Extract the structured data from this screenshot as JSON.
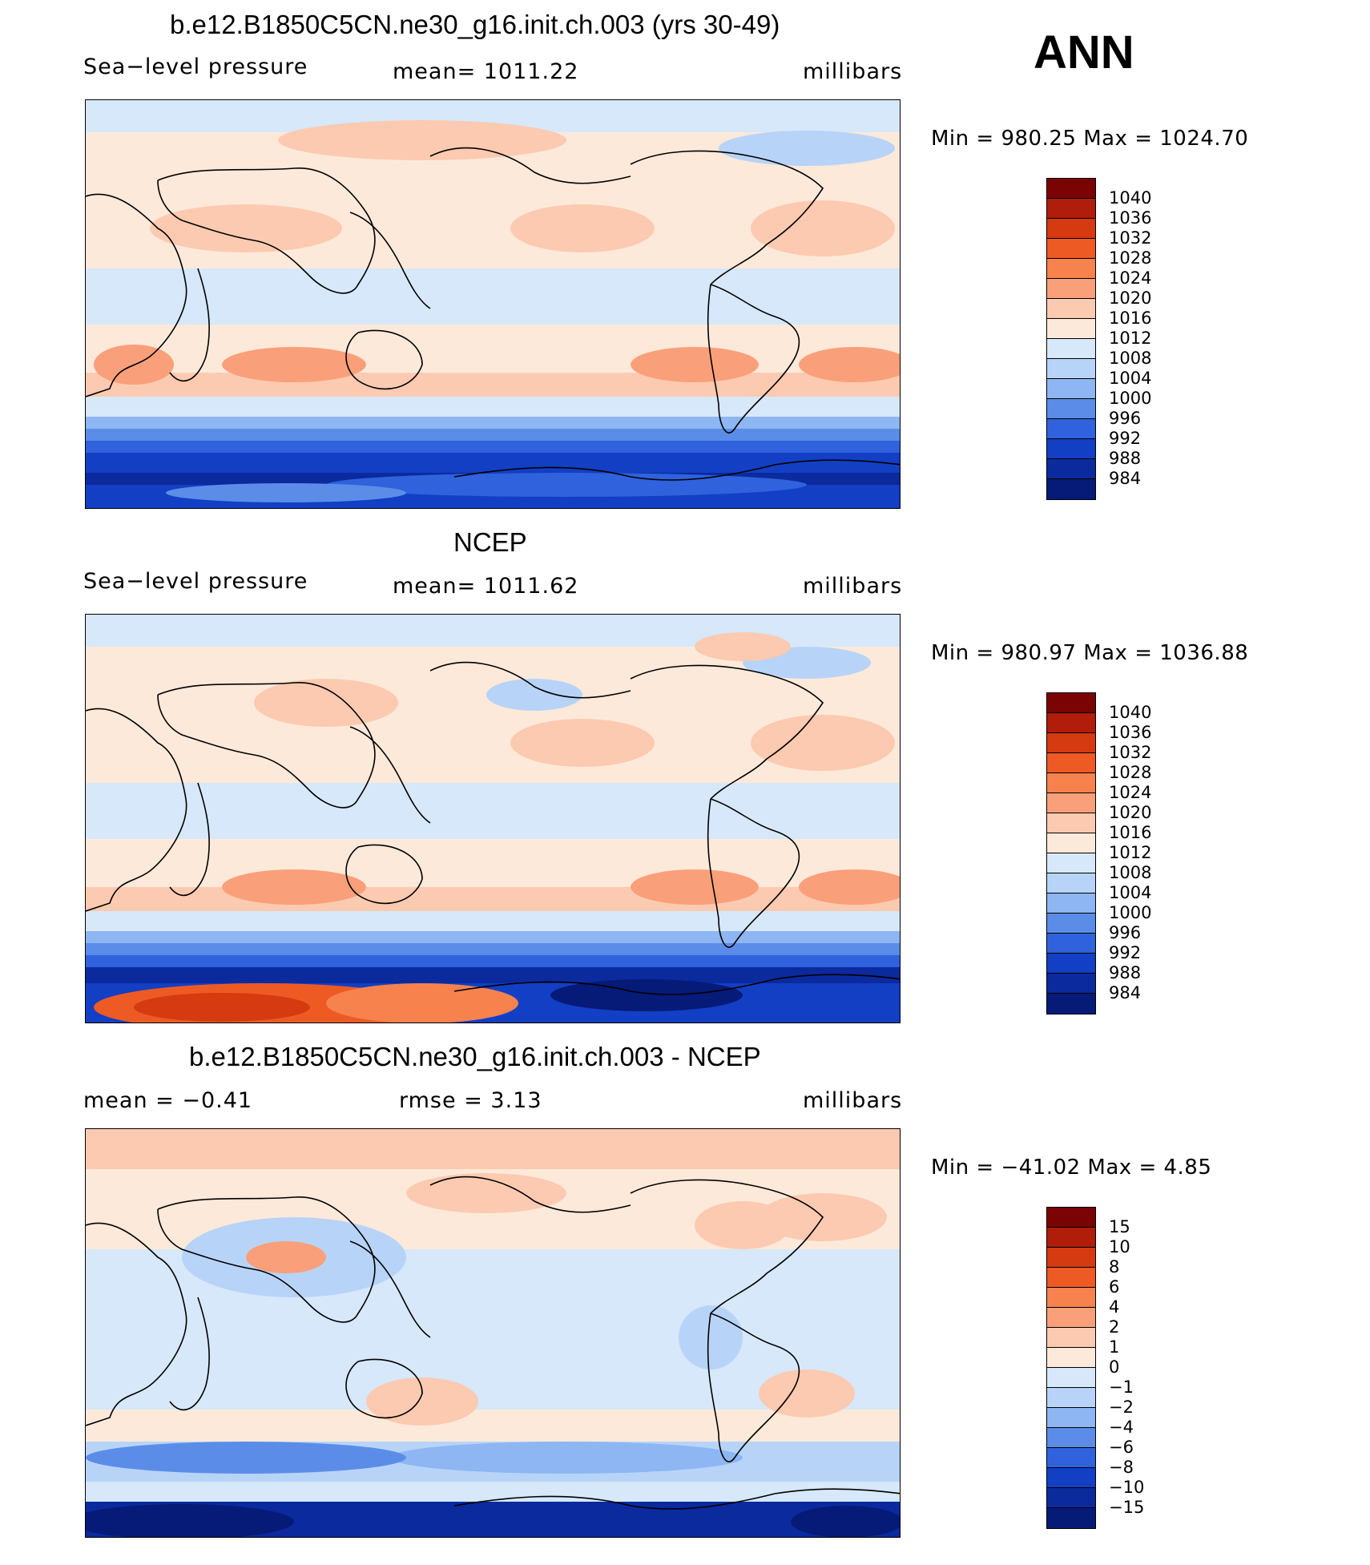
{
  "season": "ANN",
  "units": "millibars",
  "panels": [
    {
      "title": "b.e12.B1850C5CN.ne30_g16.init.ch.003 (yrs 30-49)",
      "left_label": "Sea−level pressure",
      "center_label": "mean=  1011.22",
      "right_label": "millibars",
      "minmax": "Min  =  980.25  Max  =  1024.70",
      "colorbar_levels": [
        "1040",
        "1036",
        "1032",
        "1028",
        "1024",
        "1020",
        "1016",
        "1012",
        "1008",
        "1004",
        "1000",
        "996",
        "992",
        "988",
        "984"
      ]
    },
    {
      "title": "NCEP",
      "left_label": "Sea−level pressure",
      "center_label": "mean=  1011.62",
      "right_label": "millibars",
      "minmax": "Min  =  980.97  Max  =  1036.88",
      "colorbar_levels": [
        "1040",
        "1036",
        "1032",
        "1028",
        "1024",
        "1020",
        "1016",
        "1012",
        "1008",
        "1004",
        "1000",
        "996",
        "992",
        "988",
        "984"
      ]
    },
    {
      "title": "b.e12.B1850C5CN.ne30_g16.init.ch.003 - NCEP",
      "left_label": "mean  =    −0.41",
      "center_label": "rmse  =      3.13",
      "right_label": "millibars",
      "minmax": "Min  =  −41.02  Max  =      4.85",
      "colorbar_levels": [
        "15",
        "10",
        "8",
        "6",
        "4",
        "2",
        "1",
        "0",
        "−1",
        "−2",
        "−4",
        "−6",
        "−8",
        "−10",
        "−15"
      ]
    }
  ],
  "colors": {
    "scale": [
      "#7a0403",
      "#b01d0b",
      "#d63a10",
      "#ee5a24",
      "#f7824d",
      "#f9a07a",
      "#fccab0",
      "#fde9da",
      "#d6e8fa",
      "#b7d4f8",
      "#8db6f3",
      "#5b8de8",
      "#2f62dc",
      "#123fc4",
      "#0a2a9e",
      "#061a78"
    ]
  }
}
